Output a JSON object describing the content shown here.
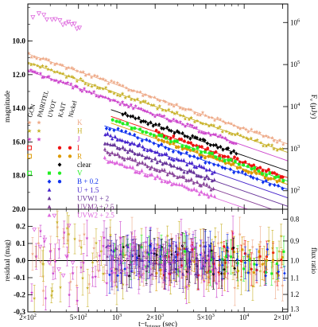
{
  "chart_data": {
    "type": "scatter",
    "x_scale": "log",
    "xlim": [
      200,
      22000
    ],
    "xlabel": "t−t",
    "xlabel_sub": "trigger",
    "xlabel_unit": "(sec)",
    "top": {
      "ylabel": "magnitude",
      "ylim": [
        20.0,
        7.8
      ],
      "y_inverted": true,
      "yticks": [
        {
          "v": 10,
          "label": "10.0"
        },
        {
          "v": 12,
          "label": "12.0"
        },
        {
          "v": 14,
          "label": "14.0"
        },
        {
          "v": 16,
          "label": "16.0"
        },
        {
          "v": 18,
          "label": "18.0"
        },
        {
          "v": 20,
          "label": "20.0"
        }
      ],
      "right_label": "Fν (µJy)",
      "right_label_main": "F",
      "right_label_sub": "ν",
      "right_label_unit": "(µJy)",
      "right_ticks": [
        {
          "mag": 8.9,
          "base": "10",
          "exp": "6"
        },
        {
          "mag": 11.4,
          "base": "10",
          "exp": "5"
        },
        {
          "mag": 13.9,
          "base": "10",
          "exp": "4"
        },
        {
          "mag": 16.4,
          "base": "10",
          "exp": "3"
        },
        {
          "mag": 18.9,
          "base": "10",
          "exp": "2"
        }
      ],
      "instrument_headers": [
        "GCN",
        "PAIRITEL",
        "UVOT",
        "KAIT",
        "Nickel"
      ]
    },
    "bottom": {
      "ylabel": "residual (mag)",
      "ylim": [
        -0.3,
        0.3
      ],
      "yticks": [
        {
          "v": -0.3,
          "label": "-0.3"
        },
        {
          "v": -0.2,
          "label": "-0.2"
        },
        {
          "v": -0.1,
          "label": "-0.1"
        },
        {
          "v": 0.0,
          "label": "0.0"
        },
        {
          "v": 0.1,
          "label": "0.1"
        },
        {
          "v": 0.2,
          "label": "0.2"
        },
        {
          "v": 0.3,
          "label": "0.3"
        }
      ],
      "right_label": "flux ratio",
      "right_ticks": [
        "0.8",
        "0.9",
        "1.0",
        "1.1",
        "1.2",
        "1.3"
      ]
    },
    "xticks": [
      {
        "v": 200,
        "mant": "2",
        "exp": "2"
      },
      {
        "v": 500,
        "mant": "5",
        "exp": "2"
      },
      {
        "v": 1000,
        "mant": "",
        "exp": "3"
      },
      {
        "v": 2000,
        "mant": "2",
        "exp": "3"
      },
      {
        "v": 5000,
        "mant": "5",
        "exp": "3"
      },
      {
        "v": 10000,
        "mant": "",
        "exp": "4"
      },
      {
        "v": 20000,
        "mant": "2",
        "exp": "4"
      }
    ],
    "series": [
      {
        "name": "K",
        "color": "#eeaa88",
        "marker": "star",
        "t_start": 200,
        "t_end": 21000,
        "mag_at_1000": 12.6,
        "slope": 1.05,
        "model": true
      },
      {
        "name": "H",
        "color": "#c8b22a",
        "marker": "star",
        "t_start": 200,
        "t_end": 21000,
        "mag_at_1000": 13.1,
        "slope": 1.05,
        "model": true
      },
      {
        "name": "J",
        "color": "#cc44cc",
        "marker": "star",
        "t_start": 200,
        "t_end": 9000,
        "mag_at_1000": 13.6,
        "slope": 1.05,
        "model": true
      },
      {
        "name": "I",
        "color": "#ee1111",
        "marker": "circle",
        "t_start": 2000,
        "t_end": 21000,
        "mag_at_1000": 14.6,
        "slope": 1.05,
        "model": true
      },
      {
        "name": "R",
        "color": "#dd9900",
        "marker": "circle",
        "t_start": 2000,
        "t_end": 21000,
        "mag_at_1000": 15.0,
        "slope": 1.05,
        "model": true
      },
      {
        "name": "clear",
        "color": "#000000",
        "marker": "diamond",
        "t_start": 1100,
        "t_end": 9000,
        "mag_at_1000": 14.2,
        "slope": 1.05,
        "model": true
      },
      {
        "name": "V",
        "color": "#22ee22",
        "marker": "square",
        "t_start": 900,
        "t_end": 21000,
        "mag_at_1000": 14.8,
        "slope": 1.05,
        "model": true
      },
      {
        "name": "B + 0.2",
        "color": "#1133ee",
        "marker": "diamond",
        "t_start": 800,
        "t_end": 21000,
        "mag_at_1000": 15.3,
        "slope": 1.05,
        "model": true
      },
      {
        "name": "U + 1.5",
        "color": "#4422cc",
        "marker": "triangle",
        "t_start": 800,
        "t_end": 6000,
        "mag_at_1000": 15.8,
        "slope": 1.05,
        "model": true
      },
      {
        "name": "UVW1 + 2",
        "color": "#663399",
        "marker": "triangle",
        "t_start": 800,
        "t_end": 6000,
        "mag_at_1000": 16.3,
        "slope": 1.05,
        "model": true
      },
      {
        "name": "UVM2 + 2.5",
        "color": "#884499",
        "marker": "triangle",
        "t_start": 800,
        "t_end": 6000,
        "mag_at_1000": 16.8,
        "slope": 1.05,
        "model": true
      },
      {
        "name": "UVW2 + 2.5",
        "color": "#dd66dd",
        "marker": "triangle",
        "t_start": 800,
        "t_end": 6000,
        "mag_at_1000": 17.3,
        "slope": 1.05,
        "model": true
      }
    ],
    "legend_instrument_symbols": [
      {
        "row": 0,
        "col": 0,
        "marker": "star",
        "color": "#eeaa88"
      },
      {
        "row": 1,
        "col": 0,
        "marker": "star",
        "color": "#c8b22a"
      },
      {
        "row": 2,
        "col": 0,
        "marker": "star",
        "color": "#cc44cc"
      },
      {
        "row": 3,
        "col": 0,
        "marker": "open-square",
        "color": "#ee1111"
      },
      {
        "row": 4,
        "col": 0,
        "marker": "open-square",
        "color": "#dd9900"
      },
      {
        "row": 6,
        "col": 0,
        "marker": "open-square",
        "color": "#22ee22"
      },
      {
        "row": 0,
        "col": 1,
        "marker": "star",
        "color": "#eeaa88"
      },
      {
        "row": 1,
        "col": 1,
        "marker": "star",
        "color": "#c8b22a"
      },
      {
        "row": 2,
        "col": 1,
        "marker": "star",
        "color": "#cc44cc"
      },
      {
        "row": 3,
        "col": 3,
        "marker": "circle",
        "color": "#ee1111"
      },
      {
        "row": 3,
        "col": 4,
        "marker": "circle",
        "color": "#ee1111"
      },
      {
        "row": 4,
        "col": 3,
        "marker": "circle",
        "color": "#dd9900"
      },
      {
        "row": 4,
        "col": 4,
        "marker": "circle",
        "color": "#dd9900"
      },
      {
        "row": 5,
        "col": 3,
        "marker": "diamond",
        "color": "#000000"
      },
      {
        "row": 6,
        "col": 2,
        "marker": "square",
        "color": "#22ee22"
      },
      {
        "row": 6,
        "col": 3,
        "marker": "circle",
        "color": "#22ee22"
      },
      {
        "row": 7,
        "col": 2,
        "marker": "diamond",
        "color": "#1133ee"
      },
      {
        "row": 7,
        "col": 3,
        "marker": "circle",
        "color": "#1133ee"
      },
      {
        "row": 8,
        "col": 2,
        "marker": "triangle",
        "color": "#4422cc"
      },
      {
        "row": 9,
        "col": 2,
        "marker": "triangle",
        "color": "#663399"
      },
      {
        "row": 10,
        "col": 2,
        "marker": "triangle",
        "color": "#884499"
      },
      {
        "row": 11,
        "col": 2,
        "marker": "triangle",
        "color": "#dd66dd"
      }
    ]
  }
}
